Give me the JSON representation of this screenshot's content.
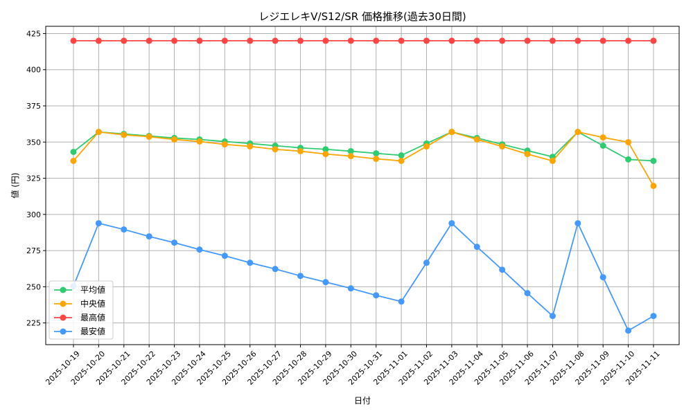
{
  "chart_data": {
    "type": "line",
    "title": "レジエレキV/S12/SR 価格推移(過去30日間)",
    "xlabel": "日付",
    "ylabel": "値 (円)",
    "ylim": [
      210,
      430
    ],
    "yticks": [
      225,
      250,
      275,
      300,
      325,
      350,
      375,
      400,
      425
    ],
    "grid": true,
    "legend_position": "lower-left",
    "x": [
      "2025-10-19",
      "2025-10-20",
      "2025-10-21",
      "2025-10-22",
      "2025-10-23",
      "2025-10-24",
      "2025-10-25",
      "2025-10-26",
      "2025-10-27",
      "2025-10-28",
      "2025-10-29",
      "2025-10-30",
      "2025-10-31",
      "2025-11-01",
      "2025-11-02",
      "2025-11-03",
      "2025-11-04",
      "2025-11-05",
      "2025-11-06",
      "2025-11-07",
      "2025-11-08",
      "2025-11-09",
      "2025-11-10",
      "2025-11-11"
    ],
    "series": [
      {
        "name": "平均値",
        "color": "#2ecc71",
        "values": [
          343.2,
          357,
          355.6,
          354.2,
          352.8,
          351.8,
          350.4,
          349,
          347.5,
          346,
          345,
          343.7,
          342.2,
          340.8,
          349,
          357,
          352.8,
          348.4,
          344.1,
          339.8,
          357,
          347.5,
          338,
          337
        ]
      },
      {
        "name": "中央値",
        "color": "#ffa500",
        "values": [
          337,
          357,
          355,
          353.7,
          351.8,
          350.4,
          348.4,
          347,
          345,
          343.7,
          341.7,
          340.3,
          338.4,
          337,
          347,
          357,
          351.8,
          347,
          341.7,
          337,
          357,
          353.2,
          349.9,
          319.7
        ]
      },
      {
        "name": "最高値",
        "color": "#ff4444",
        "values": [
          420,
          420,
          420,
          420,
          420,
          420,
          420,
          420,
          420,
          420,
          420,
          420,
          420,
          420,
          420,
          420,
          420,
          420,
          420,
          420,
          420,
          420,
          420,
          420
        ]
      },
      {
        "name": "最安値",
        "color": "#4499ff",
        "values": [
          250.4,
          293.9,
          289.6,
          284.8,
          280.5,
          275.7,
          271.4,
          266.6,
          262.3,
          257.5,
          253.2,
          248.9,
          244.1,
          239.8,
          266.6,
          293.9,
          277.6,
          261.8,
          245.6,
          229.8,
          293.9,
          256.6,
          219.7,
          229.8
        ]
      }
    ]
  }
}
